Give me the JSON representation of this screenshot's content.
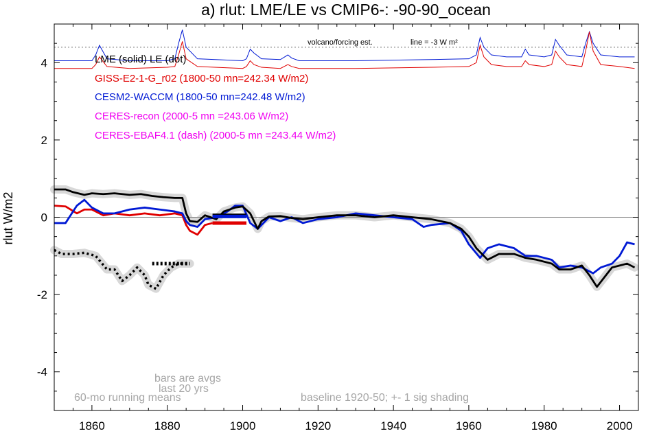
{
  "chart_data": {
    "type": "line",
    "title": "a) rlut: LME/LE vs CMIP6-: -90-90_ocean",
    "ylabel": "rlut W/m2",
    "xlabel": "",
    "xlim": [
      1850,
      2005
    ],
    "ylim": [
      -5,
      5
    ],
    "xticks": [
      "1860",
      "1880",
      "1900",
      "1920",
      "1940",
      "1960",
      "1980",
      "2000"
    ],
    "yticks": [
      "-4",
      "-2",
      "0",
      "2",
      "4"
    ],
    "grid": false,
    "colors": {
      "LME": "#000000",
      "GISS": "#e00000",
      "CESM2": "#0019d4",
      "CERES": "#f000f0",
      "note": "#a6a6a6",
      "shade": "#d8d8d8"
    },
    "legend": [
      {
        "text": "LME (solid)   LE (dot)",
        "color": "#000000"
      },
      {
        "text": "GISS-E2-1-G_r02 (1800-50 mn=242.34 W/m2)",
        "color": "#e00000"
      },
      {
        "text": "CESM2-WACCM (1800-50 mn=242.48 W/m2)",
        "color": "#0019d4"
      },
      {
        "text": "CERES-recon (2000-5 mn =243.06 W/m2)",
        "color": "#f000f0"
      },
      {
        "text": "CERES-EBAF4.1 (dash) (2000-5 mn =243.44 W/m2)",
        "color": "#f000f0"
      }
    ],
    "forcing_note": "volcano/forcing est.",
    "forcing_line_label": "line = -3 W m²",
    "forcing_line_y": 4.4,
    "notes": [
      "bars are avgs",
      "last 20 yrs",
      "60-mo running means",
      "baseline 1920-50; +- 1 sig shading"
    ],
    "series": [
      {
        "name": "LME",
        "color": "#000000",
        "style": "solid",
        "x": [
          1850,
          1853,
          1855,
          1858,
          1860,
          1863,
          1866,
          1870,
          1873,
          1876,
          1879,
          1882,
          1884,
          1885,
          1886,
          1888,
          1890,
          1893,
          1895,
          1898,
          1900,
          1902,
          1904,
          1905,
          1907,
          1910,
          1913,
          1916,
          1920,
          1925,
          1930,
          1935,
          1940,
          1945,
          1950,
          1955,
          1958,
          1960,
          1962,
          1965,
          1968,
          1972,
          1975,
          1978,
          1982,
          1984,
          1987,
          1990,
          1992,
          1994,
          1996,
          1998,
          2000,
          2002,
          2004
        ],
        "y": [
          0.72,
          0.72,
          0.65,
          0.58,
          0.62,
          0.6,
          0.62,
          0.58,
          0.6,
          0.55,
          0.52,
          0.5,
          0.5,
          0.1,
          -0.1,
          -0.12,
          0.05,
          -0.05,
          0.15,
          0.25,
          0.28,
          0.1,
          -0.3,
          -0.1,
          0.02,
          0.03,
          -0.02,
          -0.05,
          0.0,
          0.05,
          0.05,
          0.0,
          0.05,
          0.0,
          -0.05,
          -0.15,
          -0.3,
          -0.5,
          -0.8,
          -1.1,
          -0.95,
          -0.95,
          -1.05,
          -1.1,
          -1.2,
          -1.35,
          -1.35,
          -1.25,
          -1.5,
          -1.8,
          -1.55,
          -1.3,
          -1.25,
          -1.2,
          -1.3
        ]
      },
      {
        "name": "GISS-E2-1-G_r02",
        "color": "#e00000",
        "style": "solid",
        "x": [
          1850,
          1853,
          1856,
          1858,
          1860,
          1863,
          1866,
          1870,
          1874,
          1878,
          1882,
          1884,
          1885,
          1886,
          1888,
          1890,
          1892
        ],
        "y": [
          0.3,
          0.28,
          0.1,
          0.2,
          0.2,
          0.05,
          0.1,
          0.05,
          0.1,
          0.05,
          0.1,
          0.05,
          -0.2,
          -0.35,
          -0.45,
          -0.2,
          -0.15
        ]
      },
      {
        "name": "CESM2-WACCM",
        "color": "#0019d4",
        "style": "solid",
        "x": [
          1850,
          1853,
          1856,
          1858,
          1860,
          1863,
          1866,
          1870,
          1874,
          1878,
          1882,
          1884,
          1885,
          1886,
          1888,
          1890,
          1893,
          1896,
          1898,
          1900,
          1902,
          1904,
          1907,
          1910,
          1913,
          1916,
          1920,
          1925,
          1930,
          1935,
          1940,
          1945,
          1948,
          1950,
          1955,
          1958,
          1960,
          1963,
          1965,
          1968,
          1972,
          1975,
          1978,
          1982,
          1984,
          1987,
          1990,
          1993,
          1995,
          1998,
          2000,
          2002,
          2004
        ],
        "y": [
          -0.15,
          -0.15,
          0.3,
          0.45,
          0.25,
          0.1,
          0.1,
          0.2,
          0.25,
          0.2,
          0.15,
          0.1,
          -0.1,
          -0.2,
          -0.25,
          -0.05,
          0.0,
          0.15,
          0.3,
          0.3,
          -0.15,
          -0.3,
          0.0,
          -0.1,
          0.0,
          -0.15,
          -0.05,
          0.0,
          0.1,
          0.05,
          0.0,
          -0.05,
          -0.25,
          -0.2,
          -0.15,
          -0.35,
          -0.7,
          -1.05,
          -0.8,
          -0.7,
          -0.8,
          -1.0,
          -1.0,
          -1.1,
          -1.3,
          -1.25,
          -1.3,
          -1.45,
          -1.3,
          -1.2,
          -1.0,
          -0.65,
          -0.7
        ]
      },
      {
        "name": "LE",
        "color": "#000000",
        "style": "dot",
        "x": [
          1850,
          1852,
          1855,
          1858,
          1861,
          1864,
          1866,
          1868,
          1870,
          1872,
          1874,
          1875,
          1877,
          1879,
          1881,
          1883,
          1886
        ],
        "y": [
          -0.85,
          -0.95,
          -0.95,
          -0.92,
          -1.0,
          -1.35,
          -1.35,
          -1.65,
          -1.5,
          -1.3,
          -1.5,
          -1.75,
          -1.85,
          -1.5,
          -1.3,
          -1.2,
          -1.2
        ]
      }
    ],
    "bars": [
      {
        "name": "LME",
        "color": "#000000",
        "x": [
          1892,
          1901
        ],
        "y": 0.05
      },
      {
        "name": "CESM2-WACCM",
        "color": "#0019d4",
        "x": [
          1892,
          1901
        ],
        "y": 0.02
      },
      {
        "name": "GISS-E2-1-G_r02",
        "color": "#e00000",
        "x": [
          1892,
          1901
        ],
        "y": -0.15
      }
    ],
    "forcing_series": [
      {
        "name": "CESM2-WACCM forcing",
        "color": "#0019d4",
        "x": [
          1850,
          1860,
          1861,
          1862,
          1864,
          1870,
          1880,
          1882,
          1883,
          1884,
          1885,
          1888,
          1900,
          1901,
          1902,
          1903,
          1905,
          1910,
          1912,
          1913,
          1915,
          1930,
          1950,
          1960,
          1962,
          1963,
          1964,
          1966,
          1970,
          1974,
          1975,
          1976,
          1980,
          1982,
          1983,
          1984,
          1986,
          1990,
          1991,
          1992,
          1993,
          1995,
          2000,
          2004
        ],
        "y": [
          4.05,
          4.05,
          4.2,
          4.45,
          4.1,
          4.05,
          4.05,
          4.1,
          4.5,
          4.85,
          4.4,
          4.1,
          4.05,
          4.1,
          4.35,
          4.25,
          4.1,
          4.08,
          4.2,
          4.12,
          4.05,
          4.05,
          4.08,
          4.1,
          4.2,
          4.65,
          4.4,
          4.2,
          4.15,
          4.15,
          4.35,
          4.2,
          4.15,
          4.2,
          4.6,
          4.45,
          4.2,
          4.15,
          4.5,
          4.8,
          4.5,
          4.2,
          4.15,
          4.15
        ]
      },
      {
        "name": "GISS forcing",
        "color": "#e00000",
        "x": [
          1850,
          1860,
          1861,
          1862,
          1864,
          1870,
          1880,
          1882,
          1883,
          1884,
          1885,
          1888,
          1900,
          1901,
          1902,
          1903,
          1905,
          1910,
          1912,
          1913,
          1915,
          1930,
          1950,
          1960,
          1962,
          1963,
          1964,
          1966,
          1970,
          1974,
          1975,
          1976,
          1980,
          1982,
          1983,
          1984,
          1986,
          1990,
          1991,
          1992,
          1993,
          1995,
          2000,
          2004
        ],
        "y": [
          3.85,
          3.85,
          3.95,
          4.15,
          3.9,
          3.85,
          3.88,
          3.9,
          4.2,
          4.55,
          4.1,
          3.9,
          3.85,
          3.9,
          4.05,
          3.95,
          3.88,
          3.85,
          3.95,
          3.9,
          3.85,
          3.85,
          3.88,
          3.9,
          4.0,
          4.45,
          4.15,
          3.95,
          3.9,
          3.9,
          4.05,
          3.95,
          3.9,
          3.95,
          4.3,
          4.15,
          3.95,
          3.9,
          4.3,
          4.8,
          4.3,
          3.95,
          3.9,
          3.85
        ]
      }
    ]
  }
}
